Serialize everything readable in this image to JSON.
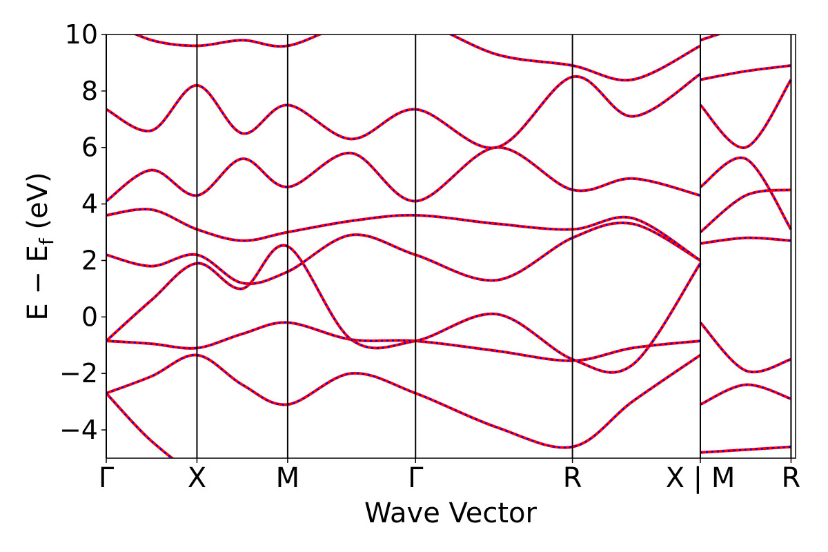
{
  "chart_data": {
    "type": "line",
    "title": "",
    "xlabel": "Wave Vector",
    "ylabel_parts": {
      "main": "E − E",
      "sub": "f",
      "unit": " (eV)"
    },
    "ylim": [
      -5,
      10
    ],
    "yticks": [
      {
        "value": -4,
        "label": "−4"
      },
      {
        "value": -2,
        "label": "−2"
      },
      {
        "value": 0,
        "label": "0"
      },
      {
        "value": 2,
        "label": "2"
      },
      {
        "value": 4,
        "label": "4"
      },
      {
        "value": 6,
        "label": "6"
      },
      {
        "value": 8,
        "label": "8"
      },
      {
        "value": 10,
        "label": "10"
      }
    ],
    "xlim": [
      0,
      7.6
    ],
    "kpoints": [
      {
        "x": 0.0,
        "label": "Γ"
      },
      {
        "x": 1.0,
        "label": "X"
      },
      {
        "x": 2.0,
        "label": "M"
      },
      {
        "x": 3.41,
        "label": "Γ"
      },
      {
        "x": 5.14,
        "label": "R"
      },
      {
        "x": 6.55,
        "label": "X | M"
      },
      {
        "x": 7.55,
        "label": "R"
      }
    ],
    "grid": false,
    "legend": "none",
    "colors": {
      "series_a": "#ff0000",
      "series_b": "#0000ff",
      "vlines": "#000000"
    },
    "bands": [
      {
        "name": "",
        "x": [
          0,
          0.5,
          1.0,
          1.5,
          2.0,
          2.7,
          3.41,
          4.3,
          5.14,
          5.8,
          6.55
        ],
        "y": [
          -2.7,
          -4.4,
          -5.5,
          -5.5,
          -5.5,
          -5.5,
          -5.5,
          -5.5,
          -5.5,
          -5.5,
          -5.5
        ]
      },
      {
        "name": "",
        "x": [
          0,
          0.5,
          1.0,
          1.5,
          2.0,
          2.7,
          3.41,
          4.3,
          5.14,
          5.8,
          6.55
        ],
        "y": [
          -2.7,
          -2.1,
          -1.35,
          -2.4,
          -3.1,
          -2.0,
          -2.7,
          -3.9,
          -4.6,
          -3.0,
          -1.35
        ]
      },
      {
        "name": "",
        "x": [
          0,
          0.5,
          1.0,
          1.5,
          2.0,
          2.7,
          3.41,
          4.3,
          5.14,
          5.8,
          6.55
        ],
        "y": [
          -0.85,
          -0.95,
          -1.1,
          -0.6,
          -0.2,
          -0.8,
          -0.85,
          -1.2,
          -1.55,
          -1.1,
          -0.85
        ]
      },
      {
        "name": "",
        "x": [
          0,
          0.5,
          1.0,
          1.5,
          2.0,
          2.7,
          3.41,
          4.3,
          5.14,
          5.8,
          6.55
        ],
        "y": [
          -0.85,
          0.6,
          1.9,
          1.0,
          2.5,
          -0.8,
          -0.85,
          0.1,
          -1.5,
          -1.7,
          1.9
        ]
      },
      {
        "name": "",
        "x": [
          0,
          0.5,
          1.0,
          1.5,
          2.0,
          2.7,
          3.41,
          4.3,
          5.14,
          5.8,
          6.55
        ],
        "y": [
          2.2,
          1.8,
          2.2,
          1.2,
          1.6,
          2.9,
          2.2,
          1.3,
          2.8,
          3.3,
          2.0
        ]
      },
      {
        "name": "",
        "x": [
          0,
          0.5,
          1.0,
          1.5,
          2.0,
          2.7,
          3.41,
          4.3,
          5.14,
          5.8,
          6.55
        ],
        "y": [
          3.6,
          3.8,
          3.1,
          2.7,
          3.0,
          3.4,
          3.6,
          3.3,
          3.1,
          3.5,
          2.0
        ]
      },
      {
        "name": "",
        "x": [
          0,
          0.5,
          1.0,
          1.5,
          2.0,
          2.7,
          3.41,
          4.3,
          5.14,
          5.8,
          6.55
        ],
        "y": [
          4.1,
          5.2,
          4.3,
          5.6,
          4.6,
          5.8,
          4.1,
          6.0,
          4.5,
          4.9,
          4.3
        ]
      },
      {
        "name": "",
        "x": [
          0,
          0.5,
          1.0,
          1.5,
          2.0,
          2.7,
          3.41,
          4.3,
          5.14,
          5.8,
          6.55
        ],
        "y": [
          7.35,
          6.6,
          8.2,
          6.5,
          7.5,
          6.3,
          7.35,
          6.0,
          8.5,
          7.1,
          8.6
        ]
      },
      {
        "name": "",
        "x": [
          0,
          0.5,
          1.0,
          1.5,
          2.0,
          2.7,
          3.41,
          4.3,
          5.14,
          5.8,
          6.55
        ],
        "y": [
          10.5,
          9.8,
          9.6,
          9.8,
          9.6,
          10.4,
          10.5,
          9.3,
          8.9,
          8.4,
          9.6
        ]
      },
      {
        "name": "",
        "x": [
          6.55,
          7.05,
          7.55
        ],
        "y": [
          -4.8,
          -4.7,
          -4.6
        ]
      },
      {
        "name": "",
        "x": [
          6.55,
          7.05,
          7.55
        ],
        "y": [
          -3.1,
          -2.4,
          -2.9
        ]
      },
      {
        "name": "",
        "x": [
          6.55,
          7.05,
          7.55
        ],
        "y": [
          -0.2,
          -1.9,
          -1.5
        ]
      },
      {
        "name": "",
        "x": [
          6.55,
          7.05,
          7.55
        ],
        "y": [
          2.6,
          2.8,
          2.7
        ]
      },
      {
        "name": "",
        "x": [
          6.55,
          7.05,
          7.55
        ],
        "y": [
          3.0,
          4.3,
          4.5
        ]
      },
      {
        "name": "",
        "x": [
          6.55,
          7.05,
          7.55
        ],
        "y": [
          4.6,
          5.6,
          3.1
        ]
      },
      {
        "name": "",
        "x": [
          6.55,
          7.05,
          7.55
        ],
        "y": [
          7.5,
          6.0,
          8.4
        ]
      },
      {
        "name": "",
        "x": [
          6.55,
          7.05,
          7.55
        ],
        "y": [
          8.4,
          8.7,
          8.9
        ]
      },
      {
        "name": "",
        "x": [
          6.55,
          7.05,
          7.55
        ],
        "y": [
          9.8,
          10.3,
          10.6
        ]
      }
    ]
  }
}
